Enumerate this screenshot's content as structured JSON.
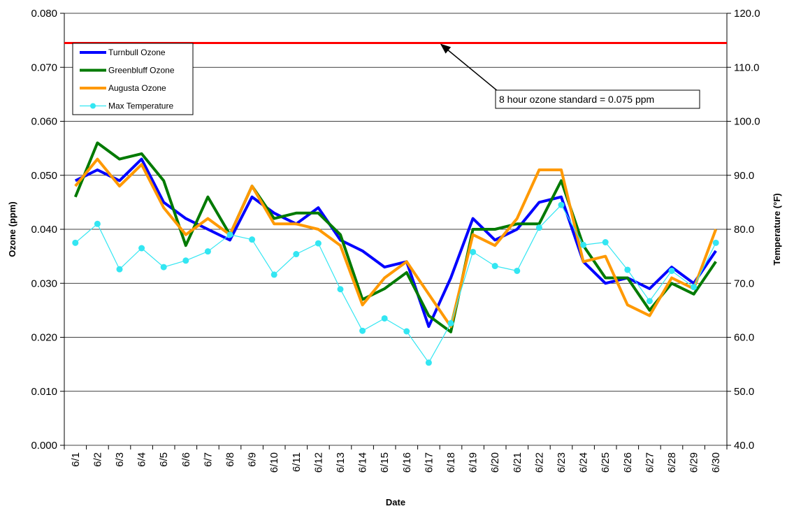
{
  "chart_data": {
    "type": "line",
    "x_label": "Date",
    "y_label_left": "Ozone (ppm)",
    "y_label_right": "Temperature (°F)",
    "ylim_left": [
      0,
      0.08
    ],
    "ylim_right": [
      40,
      120
    ],
    "left_ticks": [
      "0.000",
      "0.010",
      "0.020",
      "0.030",
      "0.040",
      "0.050",
      "0.060",
      "0.070",
      "0.080"
    ],
    "right_ticks": [
      "40.0",
      "50.0",
      "60.0",
      "70.0",
      "80.0",
      "90.0",
      "100.0",
      "110.0",
      "120.0"
    ],
    "grid": "horizontal",
    "legend_position": "top-left",
    "categories": [
      "6/1",
      "6/2",
      "6/3",
      "6/4",
      "6/5",
      "6/6",
      "6/7",
      "6/8",
      "6/9",
      "6/10",
      "6/11",
      "6/12",
      "6/13",
      "6/14",
      "6/15",
      "6/16",
      "6/17",
      "6/18",
      "6/19",
      "6/20",
      "6/21",
      "6/22",
      "6/23",
      "6/24",
      "6/25",
      "6/26",
      "6/27",
      "6/28",
      "6/29",
      "6/30"
    ],
    "series": [
      {
        "name": "Turnbull Ozone",
        "axis": "left",
        "color": "#0000ff",
        "markers": false,
        "values": [
          0.049,
          0.051,
          0.049,
          0.053,
          0.045,
          0.042,
          0.04,
          0.038,
          0.046,
          0.043,
          0.041,
          0.044,
          0.038,
          0.036,
          0.033,
          0.034,
          0.022,
          0.031,
          0.042,
          0.038,
          0.04,
          0.045,
          0.046,
          0.034,
          0.03,
          0.031,
          0.029,
          0.033,
          0.03,
          0.036
        ]
      },
      {
        "name": "Greenbluff Ozone",
        "axis": "left",
        "color": "#007a00",
        "markers": false,
        "values": [
          0.046,
          0.056,
          0.053,
          0.054,
          0.049,
          0.037,
          0.046,
          0.039,
          0.048,
          0.042,
          0.043,
          0.043,
          0.039,
          0.027,
          0.029,
          0.032,
          0.024,
          0.021,
          0.04,
          0.04,
          0.041,
          0.041,
          0.049,
          0.037,
          0.031,
          0.031,
          0.025,
          0.03,
          0.028,
          0.034
        ]
      },
      {
        "name": "Augusta Ozone",
        "axis": "left",
        "color": "#ff9900",
        "markers": false,
        "values": [
          0.048,
          0.053,
          0.048,
          0.052,
          0.044,
          0.039,
          0.042,
          0.039,
          0.048,
          0.041,
          0.041,
          0.04,
          0.037,
          0.026,
          0.031,
          0.034,
          0.028,
          0.022,
          0.039,
          0.037,
          0.042,
          0.051,
          0.051,
          0.034,
          0.035,
          0.026,
          0.024,
          0.031,
          0.029,
          0.04
        ]
      },
      {
        "name": "Max Temperature",
        "axis": "right",
        "color": "#33e6f2",
        "markers": true,
        "values": [
          77.5,
          81,
          72.6,
          76.5,
          73,
          74.2,
          75.9,
          79,
          78.1,
          71.6,
          75.4,
          77.4,
          68.9,
          61.2,
          63.5,
          61.1,
          55.3,
          62.6,
          75.8,
          73.2,
          72.3,
          80.3,
          84.5,
          77.1,
          77.6,
          72.5,
          66.7,
          72.3,
          69.3,
          77.5
        ]
      }
    ],
    "reference_line": {
      "value": 0.0745,
      "axis": "left",
      "color": "#ff0000"
    },
    "annotation": {
      "text": "8 hour ozone standard = 0.075 ppm"
    }
  }
}
